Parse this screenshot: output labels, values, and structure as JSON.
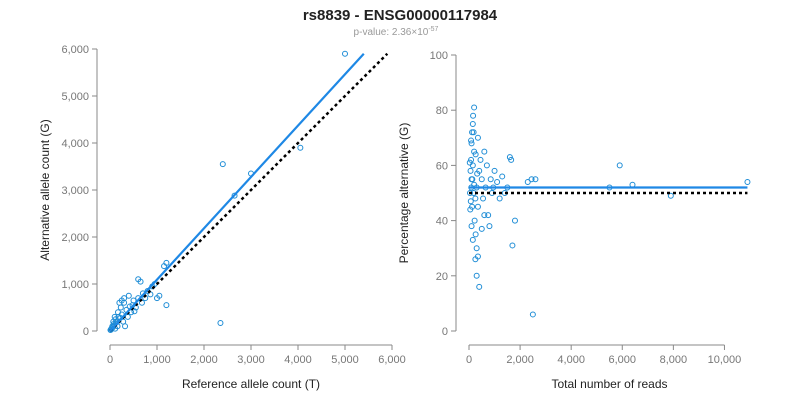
{
  "title": "rs8839 - ENSG00000117984",
  "subtitle": "p-value: 2.36×10",
  "subtitle_exponent": "-57",
  "chart_data": [
    {
      "type": "scatter",
      "x_label": "Reference allele count (T)",
      "y_label": "Alternative allele count (G)",
      "xlim": [
        0,
        6000
      ],
      "ylim": [
        0,
        6000
      ],
      "xticks": [
        0,
        {
          "value": 1000,
          "label": "1,000"
        },
        {
          "value": 2000,
          "label": "2,000"
        },
        {
          "value": 3000,
          "label": "3,000"
        },
        {
          "value": 4000,
          "label": "4,000"
        },
        {
          "value": 5000,
          "label": "5,000"
        },
        {
          "value": 6000,
          "label": "6,000"
        }
      ],
      "yticks": [
        0,
        {
          "value": 1000,
          "label": "1,000"
        },
        {
          "value": 2000,
          "label": "2,000"
        },
        {
          "value": 3000,
          "label": "3,000"
        },
        {
          "value": 4000,
          "label": "4,000"
        },
        {
          "value": 5000,
          "label": "5,000"
        },
        {
          "value": 6000,
          "label": "6,000"
        }
      ],
      "points": {
        "color": "#1f8dd6",
        "x": [
          5000,
          2400,
          4050,
          3000,
          2650,
          2350,
          1200,
          1150,
          1200,
          1050,
          600,
          650,
          300,
          400,
          500,
          200,
          350,
          450,
          550,
          700,
          800,
          900,
          750,
          100,
          150,
          50,
          80,
          30,
          120,
          250,
          180,
          60,
          20,
          10,
          40,
          90,
          130,
          220,
          280,
          320,
          380,
          420,
          480,
          520,
          600,
          680,
          860,
          950,
          1000,
          170,
          230,
          70,
          110,
          160,
          300,
          250
        ],
        "y": [
          5900,
          3550,
          3900,
          3350,
          2880,
          170,
          1450,
          1380,
          550,
          750,
          1100,
          1050,
          700,
          750,
          650,
          600,
          450,
          400,
          500,
          800,
          850,
          950,
          700,
          300,
          200,
          100,
          150,
          50,
          250,
          350,
          300,
          80,
          30,
          20,
          60,
          120,
          180,
          280,
          200,
          100,
          300,
          520,
          550,
          420,
          700,
          600,
          780,
          1000,
          700,
          400,
          500,
          200,
          50,
          100,
          600,
          650
        ]
      },
      "fit_line": {
        "color": "#1e88e5",
        "x": [
          0,
          5400
        ],
        "y": [
          0,
          5900
        ]
      },
      "reference_line": {
        "color": "#000000",
        "x": [
          0,
          5900
        ],
        "y": [
          0,
          5900
        ]
      }
    },
    {
      "type": "scatter",
      "x_label": "Total number of reads",
      "y_label": "Percentage alternative (G)",
      "xlim": [
        0,
        11000
      ],
      "ylim": [
        0,
        100
      ],
      "xticks": [
        0,
        {
          "value": 2000,
          "label": "2,000"
        },
        {
          "value": 4000,
          "label": "4,000"
        },
        {
          "value": 6000,
          "label": "6,000"
        },
        {
          "value": 8000,
          "label": "8,000"
        },
        {
          "value": 10000,
          "label": "10,000"
        }
      ],
      "yticks": [
        0,
        20,
        40,
        60,
        80,
        100
      ],
      "points": {
        "color": "#1f8dd6",
        "x": [
          100,
          150,
          200,
          250,
          300,
          350,
          120,
          80,
          60,
          40,
          180,
          220,
          260,
          300,
          200,
          150,
          100,
          350,
          400,
          450,
          500,
          550,
          600,
          650,
          700,
          750,
          800,
          850,
          900,
          950,
          1000,
          1100,
          1200,
          1300,
          1400,
          1600,
          1650,
          1700,
          1800,
          1500,
          2300,
          2500,
          2600,
          2450,
          5500,
          5900,
          6400,
          7900,
          10900,
          400,
          300,
          250,
          150,
          100,
          50,
          350,
          500,
          600,
          80,
          120,
          160,
          200,
          30,
          70,
          260,
          320,
          180,
          90,
          130
        ],
        "y": [
          55,
          60,
          65,
          48,
          52,
          70,
          45,
          62,
          58,
          50,
          72,
          40,
          35,
          30,
          81,
          75,
          68,
          45,
          58,
          62,
          55,
          48,
          65,
          52,
          60,
          42,
          38,
          55,
          50,
          52,
          58,
          54,
          48,
          56,
          50,
          63,
          62,
          31,
          40,
          52,
          54,
          6,
          55,
          55,
          52,
          60,
          53,
          49,
          54,
          16,
          20,
          26,
          33,
          38,
          44,
          27,
          37,
          42,
          69,
          72,
          78,
          53,
          61,
          47,
          64,
          57,
          50,
          52,
          55
        ]
      },
      "fit_line": {
        "color": "#1e88e5",
        "x": [
          0,
          10900
        ],
        "y": [
          52,
          52
        ]
      },
      "reference_line": {
        "color": "#000000",
        "x": [
          0,
          10900
        ],
        "y": [
          50,
          50
        ]
      }
    }
  ]
}
